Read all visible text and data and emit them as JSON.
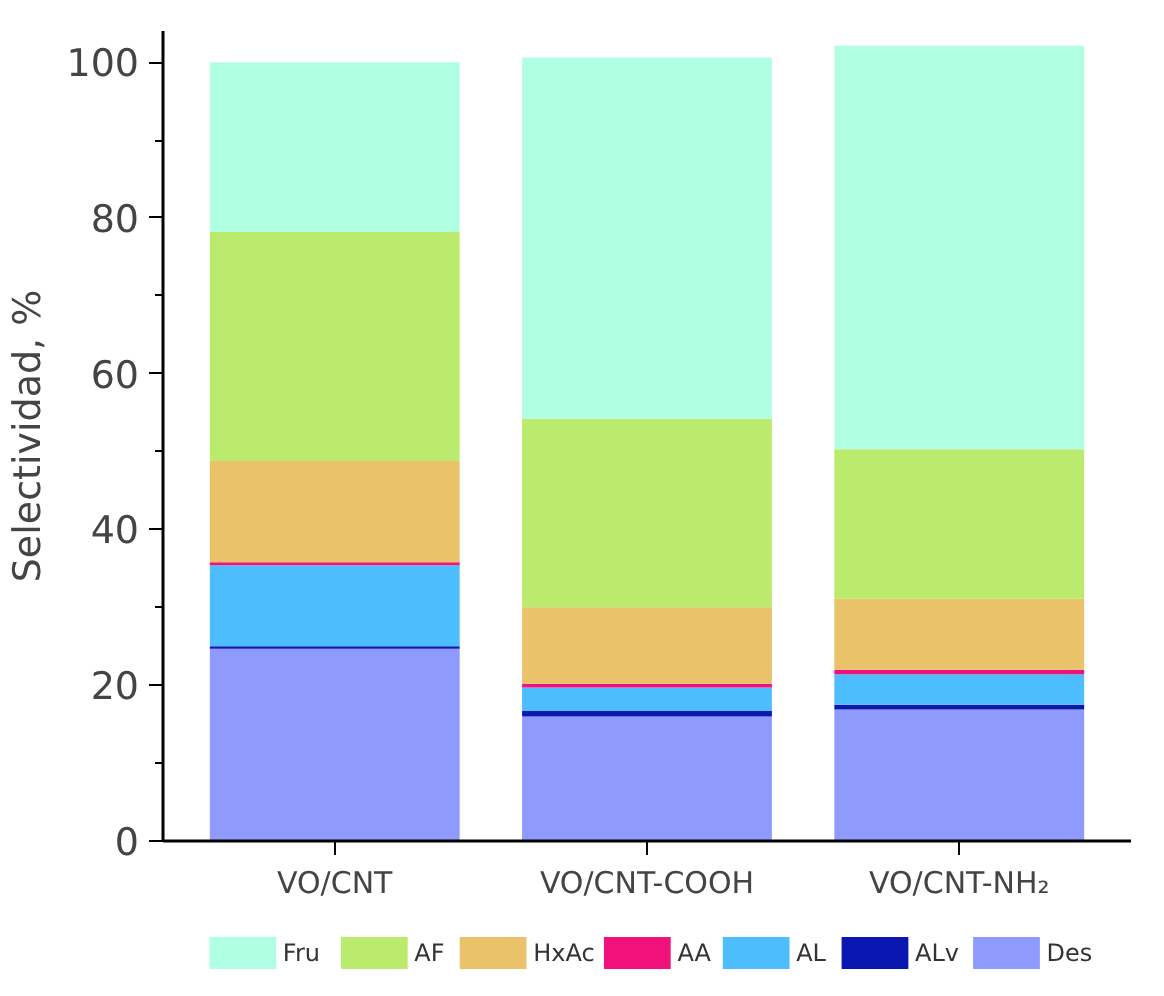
{
  "chart_data": {
    "type": "bar",
    "stacked": true,
    "ylabel": "Selectividad, %",
    "categories": [
      "VO/CNT",
      "VO/CNT-COOH",
      "VO/CNT-NH₂"
    ],
    "series": [
      {
        "name": "Des",
        "color": "#8e9bfd",
        "values": [
          24.7,
          16.0,
          16.9
        ]
      },
      {
        "name": "ALv",
        "color": "#0a17b0",
        "values": [
          0.3,
          0.7,
          0.6
        ]
      },
      {
        "name": "AL",
        "color": "#4dbdfe",
        "values": [
          10.4,
          3.0,
          3.9
        ]
      },
      {
        "name": "AA",
        "color": "#f0127a",
        "values": [
          0.4,
          0.5,
          0.6
        ]
      },
      {
        "name": "HxAc",
        "color": "#e9c26a",
        "values": [
          13.0,
          9.8,
          9.1
        ]
      },
      {
        "name": "AF",
        "color": "#bbeb6d",
        "values": [
          29.4,
          24.2,
          19.2
        ]
      },
      {
        "name": "Fru",
        "color": "#b0ffe3",
        "values": [
          21.8,
          46.4,
          51.8
        ]
      }
    ],
    "ylim": [
      0,
      104
    ],
    "yticks": [
      0,
      {
        "value": 10,
        "label": null
      },
      20,
      {
        "value": 30,
        "label": null
      },
      40,
      {
        "value": 50,
        "label": null
      },
      60,
      {
        "value": 70,
        "label": null
      },
      80,
      {
        "value": 90,
        "label": null
      },
      100
    ],
    "legend": "bottom",
    "grid": false
  }
}
